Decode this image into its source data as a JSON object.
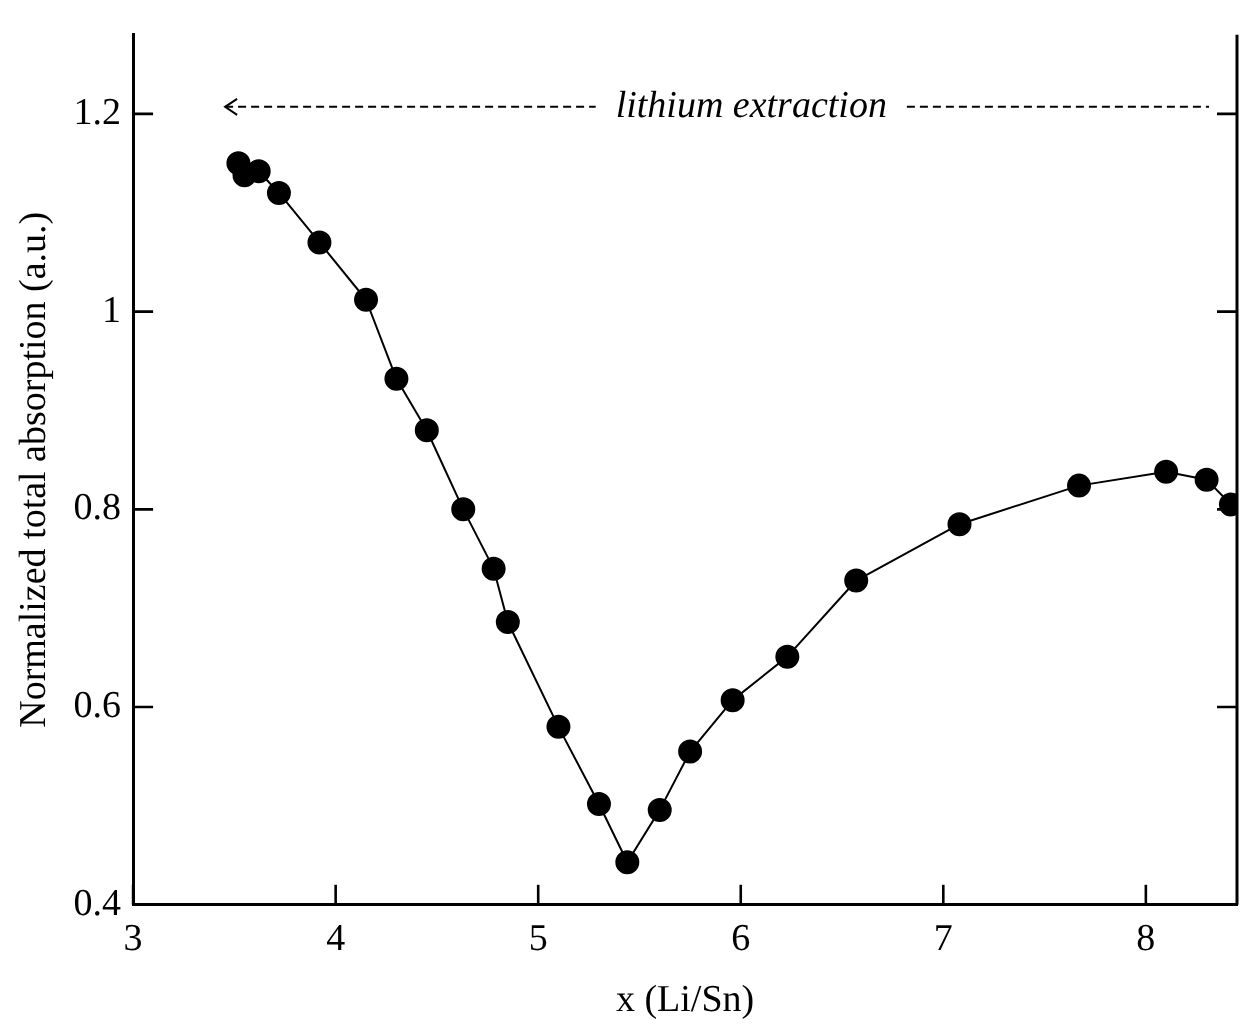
{
  "chart_data": {
    "type": "line",
    "xlabel": "x (Li/Sn)",
    "ylabel": "Normalized total absorption (a.u.)",
    "annotations": [
      "lithium extraction"
    ],
    "x": [
      3.52,
      3.55,
      3.62,
      3.72,
      3.92,
      4.15,
      4.3,
      4.45,
      4.63,
      4.78,
      4.85,
      5.1,
      5.3,
      5.44,
      5.6,
      5.75,
      5.96,
      6.23,
      6.57,
      7.08,
      7.67,
      8.1,
      8.3,
      8.42
    ],
    "series": [
      {
        "color": "#000000",
        "values": [
          1.15,
          1.138,
          1.142,
          1.12,
          1.07,
          1.012,
          0.932,
          0.88,
          0.8,
          0.74,
          0.686,
          0.58,
          0.502,
          0.443,
          0.496,
          0.555,
          0.607,
          0.651,
          0.728,
          0.785,
          0.824,
          0.838,
          0.83,
          0.805
        ]
      }
    ],
    "xlim": [
      3,
      8.45
    ],
    "ylim": [
      0.4,
      1.28
    ],
    "xticks": [
      3,
      4,
      5,
      6,
      7,
      8
    ],
    "yticks": [
      0.4,
      0.6,
      0.8,
      1,
      1.2
    ],
    "grid": false,
    "legend": false,
    "marker": "circle",
    "line_style": "solid"
  }
}
